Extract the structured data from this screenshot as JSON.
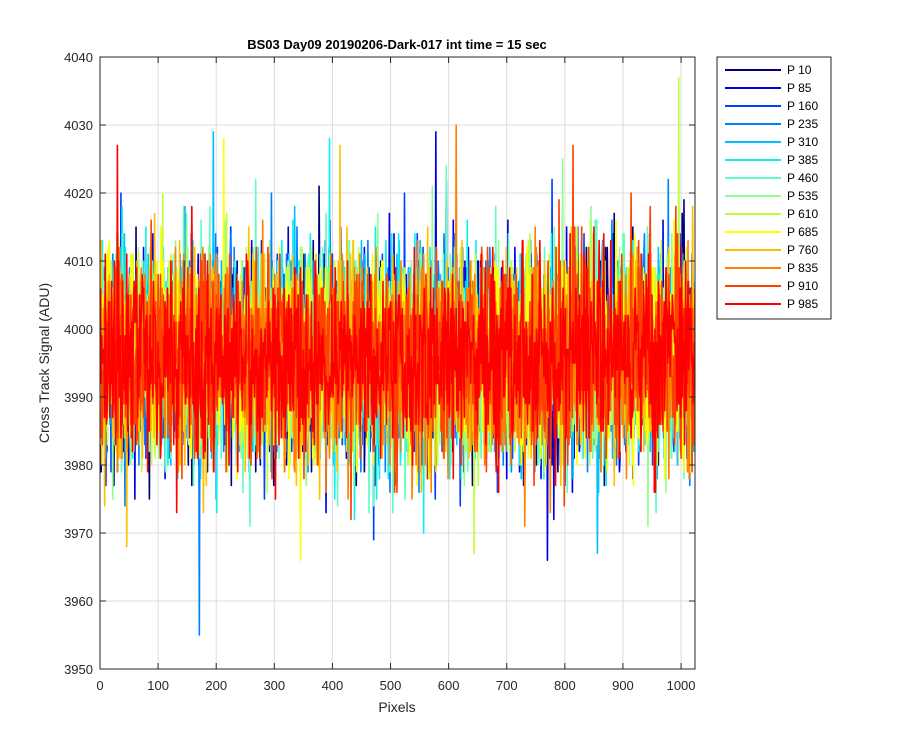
{
  "chart_data": {
    "type": "line",
    "title": "BS03 Day09 20190206-Dark-017 int time = 15 sec",
    "xlabel": "Pixels",
    "ylabel": "Cross Track Signal (ADU)",
    "xlim": [
      0,
      1024
    ],
    "ylim": [
      3950,
      4040
    ],
    "xticks": [
      "0",
      "100",
      "200",
      "300",
      "400",
      "500",
      "600",
      "700",
      "800",
      "900",
      "1000"
    ],
    "yticks": [
      "3950",
      "3960",
      "3970",
      "3980",
      "3990",
      "4000",
      "4010",
      "4020",
      "4030",
      "4040"
    ],
    "grid": true,
    "legend_position": "outside-top-right",
    "series": [
      {
        "name": "P 10",
        "color": "#00007F",
        "mean": 3996,
        "max": 4021,
        "min": 3975
      },
      {
        "name": "P 85",
        "color": "#0000E0",
        "mean": 3996,
        "max": 4029,
        "min": 3966
      },
      {
        "name": "P 160",
        "color": "#0040FF",
        "mean": 3996,
        "max": 4022,
        "min": 3969
      },
      {
        "name": "P 235",
        "color": "#0080FF",
        "mean": 3996,
        "max": 4022,
        "min": 3955
      },
      {
        "name": "P 310",
        "color": "#00C0FF",
        "mean": 3996,
        "max": 4029,
        "min": 3967
      },
      {
        "name": "P 385",
        "color": "#10F0F0",
        "mean": 3996,
        "max": 4028,
        "min": 3970
      },
      {
        "name": "P 460",
        "color": "#60FFC0",
        "mean": 3996,
        "max": 4024,
        "min": 3971
      },
      {
        "name": "P 535",
        "color": "#90FF90",
        "mean": 3996,
        "max": 4025,
        "min": 3971
      },
      {
        "name": "P 610",
        "color": "#C0FF40",
        "mean": 3996,
        "max": 4037,
        "min": 3967
      },
      {
        "name": "P 685",
        "color": "#FFFF00",
        "mean": 3996,
        "max": 4028,
        "min": 3966
      },
      {
        "name": "P 760",
        "color": "#FFC000",
        "mean": 3996,
        "max": 4027,
        "min": 3968
      },
      {
        "name": "P 835",
        "color": "#FF8000",
        "mean": 3996,
        "max": 4030,
        "min": 3971
      },
      {
        "name": "P 910",
        "color": "#FF4000",
        "mean": 3996,
        "max": 4027,
        "min": 3972
      },
      {
        "name": "P 985",
        "color": "#FF0000",
        "mean": 3996,
        "max": 4027,
        "min": 3973
      }
    ]
  }
}
